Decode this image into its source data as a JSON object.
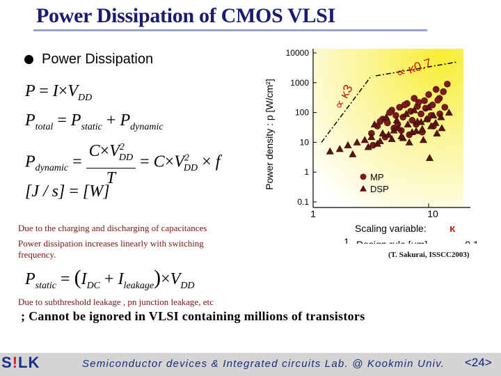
{
  "slide": {
    "title": "Power Dissipation of CMOS VLSI",
    "bullet": "Power Dissipation",
    "note_charging": "Due to the charging and discharging of capacitances",
    "note_linear_1": "Power dissipation increases  linearly with switching",
    "note_linear_2": "frequency.",
    "note_leakage": "Due to subthreshold leakage , pn junction leakage, etc",
    "conclusion": "; Cannot be ignored in VLSI containing millions of transistors",
    "citation": "(T. Sakurai, ISSCC2003)"
  },
  "equations": {
    "eq1": {
      "lhs": "P",
      "eq": "=",
      "i": "I",
      "times": "×",
      "v": "V",
      "dd": "DD"
    },
    "eq2": {
      "p": "P",
      "total": "total",
      "eq": "=",
      "static": "static",
      "plus": "+",
      "dynamic": "dynamic"
    },
    "eq3": {
      "p": "P",
      "dynamic": "dynamic",
      "eq": "=",
      "c": "C",
      "times": "×",
      "v": "V",
      "sq": "2",
      "dd": "DD",
      "t": "T",
      "f": "f"
    },
    "eq4": {
      "lhs": "[J / s]",
      "eq": "=",
      "rhs": "[W]"
    },
    "eq5": {
      "p": "P",
      "static": "static",
      "eq": "=",
      "open": "(",
      "i": "I",
      "dc": "DC",
      "plus": "+",
      "leakage": "leakage",
      "close": ")",
      "times": "×",
      "v": "V",
      "dd": "DD"
    }
  },
  "chart_data": {
    "type": "scatter",
    "ylabel": "Power density : p [W/cm²]",
    "xlabel_scaling": "Scaling variable:",
    "xlabel_scaling_symbol": "κ",
    "xlabel_design": "Design rule [μm]",
    "y_ticks": [
      "10000",
      "1000",
      "100",
      "10",
      "1",
      "0.1"
    ],
    "x_ticks_scaling": [
      "1",
      "10"
    ],
    "x_ticks_design": [
      "1",
      "0.1"
    ],
    "ylim": [
      0.1,
      10000
    ],
    "xlim_scaling": [
      1,
      20
    ],
    "trend_1": "∝ κ3",
    "trend_2": "∝ κ0.7",
    "legend": [
      "MP",
      "DSP"
    ],
    "series": [
      {
        "name": "MP",
        "marker": "circle",
        "x": [
          3.2,
          3.6,
          4.0,
          4.4,
          4.8,
          5.2,
          5.6,
          6.0,
          6.5,
          7.0,
          7.5,
          8.0,
          8.6,
          9.2,
          10,
          10.8,
          11.6,
          12.4,
          13.4,
          14.5,
          3.3,
          4.2,
          5.0,
          5.8,
          6.8,
          7.8,
          8.8,
          9.8,
          11,
          12.5,
          3.8,
          4.6,
          5.4,
          6.2,
          7.2,
          8.2,
          9.4,
          10.5,
          12,
          13.8
        ],
        "y": [
          20,
          35,
          60,
          45,
          120,
          80,
          150,
          70,
          200,
          110,
          300,
          160,
          90,
          250,
          400,
          180,
          600,
          300,
          500,
          900,
          8,
          15,
          30,
          25,
          18,
          40,
          22,
          60,
          35,
          90,
          50,
          100,
          40,
          180,
          55,
          220,
          140,
          80,
          260,
          150
        ]
      },
      {
        "name": "DSP",
        "marker": "triangle",
        "x": [
          1.4,
          1.7,
          2.0,
          2.4,
          2.8,
          3.2,
          3.6,
          4.0,
          4.5,
          5.0,
          5.5,
          6.0,
          6.6,
          7.2,
          8.0,
          8.8,
          9.6,
          10.5,
          11.5,
          12.8,
          2.2,
          3.0,
          3.8,
          4.8,
          5.8,
          6.8,
          7.8,
          9.0,
          10.2,
          11.8,
          3.4,
          4.3,
          5.3,
          6.4,
          7.5,
          8.6,
          10,
          11,
          13,
          15
        ],
        "y": [
          5,
          6,
          8,
          10,
          12,
          15,
          9,
          20,
          18,
          25,
          30,
          14,
          40,
          22,
          50,
          28,
          60,
          35,
          45,
          70,
          4,
          7,
          11,
          13,
          16,
          10,
          24,
          12,
          3,
          20,
          40,
          70,
          55,
          90,
          120,
          48,
          150,
          80,
          30,
          100
        ]
      }
    ]
  },
  "footer": {
    "text": "Semiconductor devices & Integrated circuits Lab. @ Kookmin Univ.",
    "page": "<24>",
    "logo_s": "S",
    "logo_excl": "!",
    "logo_lk": "LK"
  },
  "colors": {
    "title": "#1a1a6e",
    "note": "#7a1414",
    "mp": "#7a1a1a",
    "dsp": "#5a1414",
    "chart_bg_hot": "#f7ee33",
    "footer_text": "#1a2a7a"
  }
}
